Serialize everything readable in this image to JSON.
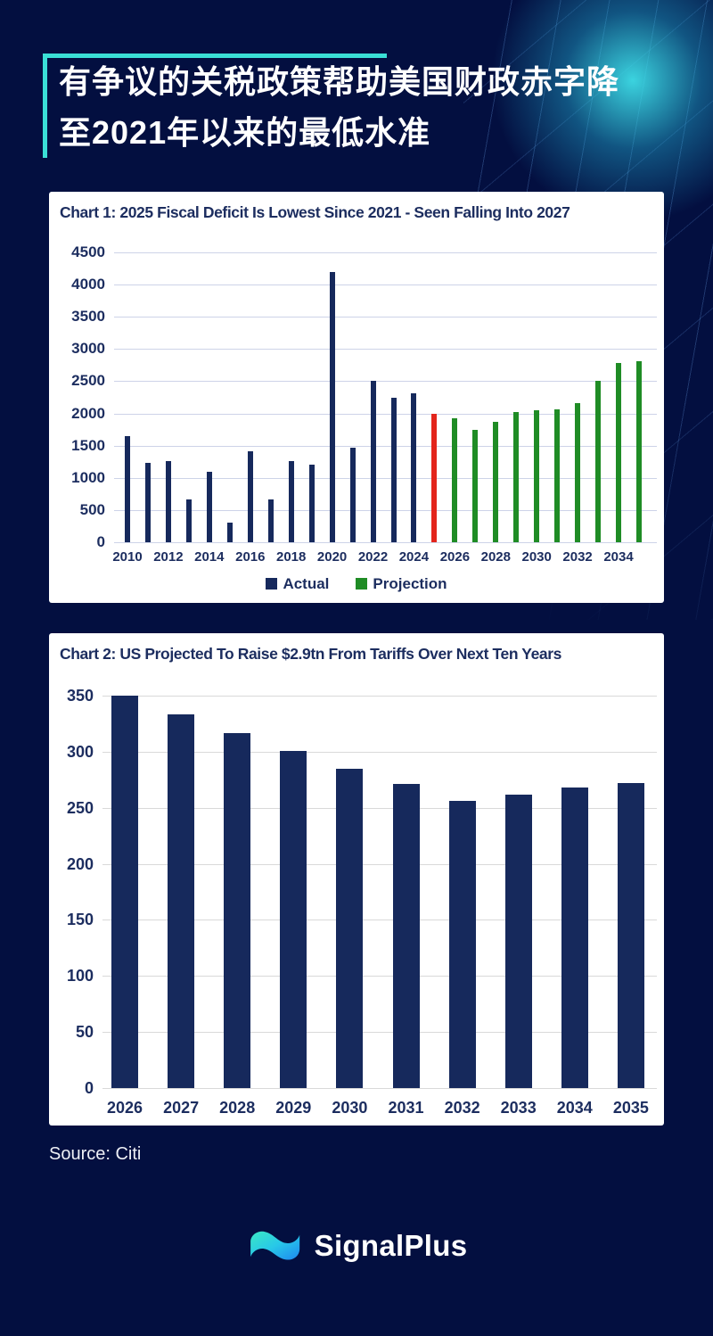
{
  "header": {
    "title_line1": "有争议的关税政策帮助美国财政赤字降",
    "title_line2": "至2021年以来的最低水准"
  },
  "footer": {
    "source": "Source: Citi",
    "brand": "SignalPlus"
  },
  "colors": {
    "background": "#030F40",
    "accent_cyan": "#3ADFD6",
    "panel_text_navy": "#1C2D5F",
    "bar_navy": "#16295C",
    "bar_red": "#E3251C",
    "bar_green": "#1F8C25",
    "logo_teal": "#35E8C4",
    "logo_blue": "#1E88F0"
  },
  "chart_data": [
    {
      "type": "bar",
      "title": "Chart 1: 2025 Fiscal Deficit Is Lowest Since 2021 - Seen Falling Into 2027",
      "categories": [
        "2010",
        "2011",
        "2012",
        "2013",
        "2014",
        "2015",
        "2016",
        "2017",
        "2018",
        "2019",
        "2020",
        "2021",
        "2022",
        "2023",
        "2024",
        "2025",
        "2026",
        "2027",
        "2028",
        "2029",
        "2030",
        "2031",
        "2032",
        "2033",
        "2034",
        "2035"
      ],
      "values": [
        1650,
        1230,
        1260,
        660,
        1090,
        310,
        1410,
        660,
        1260,
        1200,
        4200,
        1470,
        2510,
        2250,
        2310,
        2000,
        1930,
        1740,
        1870,
        2020,
        2050,
        2060,
        2160,
        2500,
        2790,
        2810
      ],
      "groups": [
        "actual",
        "actual",
        "actual",
        "actual",
        "actual",
        "actual",
        "actual",
        "actual",
        "actual",
        "actual",
        "actual",
        "actual",
        "actual",
        "actual",
        "actual",
        "highlight",
        "projection",
        "projection",
        "projection",
        "projection",
        "projection",
        "projection",
        "projection",
        "projection",
        "projection",
        "projection"
      ],
      "group_colors": {
        "actual": "#16295C",
        "highlight": "#E3251C",
        "projection": "#1F8C25"
      },
      "xtick_labels": [
        "2010",
        "2012",
        "2014",
        "2016",
        "2018",
        "2020",
        "2022",
        "2024",
        "2026",
        "2028",
        "2030",
        "2032",
        "2034"
      ],
      "ylim": [
        0,
        4500
      ],
      "ytick_step": 500,
      "grid_color": "#CDD3E8",
      "grid": "on",
      "legend_position": "bottom-center",
      "legend": [
        {
          "label": "Actual",
          "color": "#16295C"
        },
        {
          "label": "Projection",
          "color": "#1F8C25"
        }
      ]
    },
    {
      "type": "bar",
      "title": "Chart 2: US Projected To Raise $2.9tn From Tariffs Over Next Ten Years",
      "categories": [
        "2026",
        "2027",
        "2028",
        "2029",
        "2030",
        "2031",
        "2032",
        "2033",
        "2034",
        "2035"
      ],
      "values": [
        350,
        333,
        317,
        301,
        285,
        271,
        256,
        262,
        268,
        272
      ],
      "bar_color": "#16295C",
      "ylim": [
        0,
        350
      ],
      "ytick_step": 50,
      "grid_color": "#D9D9D9",
      "grid": "on",
      "legend_position": "none"
    }
  ]
}
